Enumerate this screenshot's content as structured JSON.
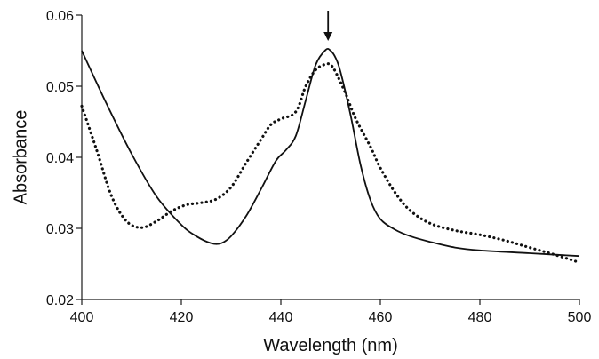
{
  "chart_data": {
    "type": "line",
    "title": "",
    "xlabel": "Wavelength (nm)",
    "ylabel": "Absorbance",
    "xlim": [
      400,
      500
    ],
    "ylim": [
      0.02,
      0.06
    ],
    "xticks": [
      400,
      420,
      440,
      460,
      480,
      500
    ],
    "yticks": [
      0.02,
      0.03,
      0.04,
      0.05,
      0.06
    ],
    "x_tick_labels": [
      "400",
      "420",
      "440",
      "460",
      "480",
      "500"
    ],
    "y_tick_labels": [
      "0.02",
      "0.03",
      "0.04",
      "0.05",
      "0.06"
    ],
    "grid": false,
    "legend": "none",
    "annotations": [
      {
        "type": "arrow",
        "direction": "down",
        "x": 449.5,
        "y": 0.0555
      }
    ],
    "series": [
      {
        "style": "solid",
        "color": "#111111",
        "x": [
          400,
          405,
          410,
          415,
          420,
          423,
          426,
          428,
          430,
          433,
          436,
          439,
          441,
          443,
          445,
          447,
          449,
          450,
          451,
          452,
          454,
          456,
          458,
          460,
          463,
          466,
          470,
          475,
          480,
          490,
          500
        ],
        "y": [
          0.055,
          0.0475,
          0.0405,
          0.0345,
          0.0305,
          0.0289,
          0.0279,
          0.0279,
          0.0289,
          0.0317,
          0.0355,
          0.0395,
          0.041,
          0.043,
          0.048,
          0.053,
          0.0551,
          0.055,
          0.054,
          0.052,
          0.046,
          0.039,
          0.034,
          0.0313,
          0.0298,
          0.0289,
          0.0281,
          0.0273,
          0.0269,
          0.0265,
          0.0261
        ]
      },
      {
        "style": "dotted",
        "color": "#111111",
        "x": [
          400,
          403,
          406,
          409,
          412,
          415,
          418,
          421,
          424,
          427,
          430,
          433,
          436,
          438,
          440,
          443,
          445,
          447,
          449,
          450,
          451,
          453,
          455,
          458,
          460,
          463,
          466,
          470,
          475,
          480,
          485,
          490,
          495,
          500
        ],
        "y": [
          0.0472,
          0.041,
          0.0345,
          0.031,
          0.0301,
          0.031,
          0.0324,
          0.0333,
          0.0336,
          0.0341,
          0.0358,
          0.0392,
          0.0425,
          0.0446,
          0.0454,
          0.0464,
          0.05,
          0.0523,
          0.0531,
          0.053,
          0.052,
          0.049,
          0.0455,
          0.0415,
          0.0385,
          0.035,
          0.0325,
          0.0307,
          0.0297,
          0.0291,
          0.0283,
          0.0273,
          0.0263,
          0.0252
        ]
      }
    ]
  }
}
